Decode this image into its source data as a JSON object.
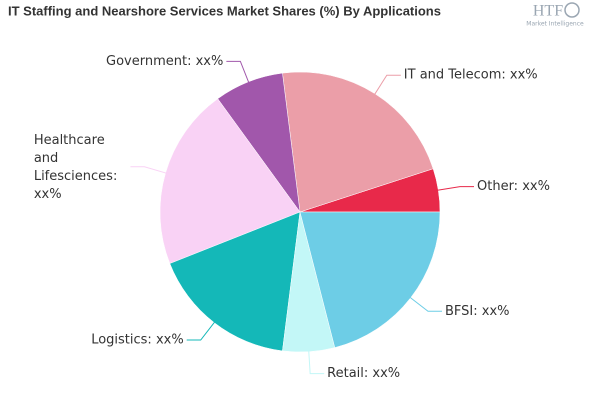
{
  "logo": {
    "text": "HTF",
    "subtitle": "Market Intelligence"
  },
  "chart_data": {
    "type": "pie",
    "title": "IT Staffing and Nearshore Services Market Shares (%) By Applications",
    "categories": [
      "Other: xx%",
      "IT and Telecom: xx%",
      "Government: xx%",
      "Healthcare and Lifesciences: xx%",
      "Logistics: xx%",
      "Retail: xx%",
      "BFSI: xx%"
    ],
    "values": [
      5,
      22,
      8,
      21,
      17,
      6,
      21
    ],
    "colors": [
      "#e8294a",
      "#eb9ea8",
      "#a157ab",
      "#f9d2f5",
      "#14b8b8",
      "#c3f7f7",
      "#6dcde6"
    ]
  }
}
